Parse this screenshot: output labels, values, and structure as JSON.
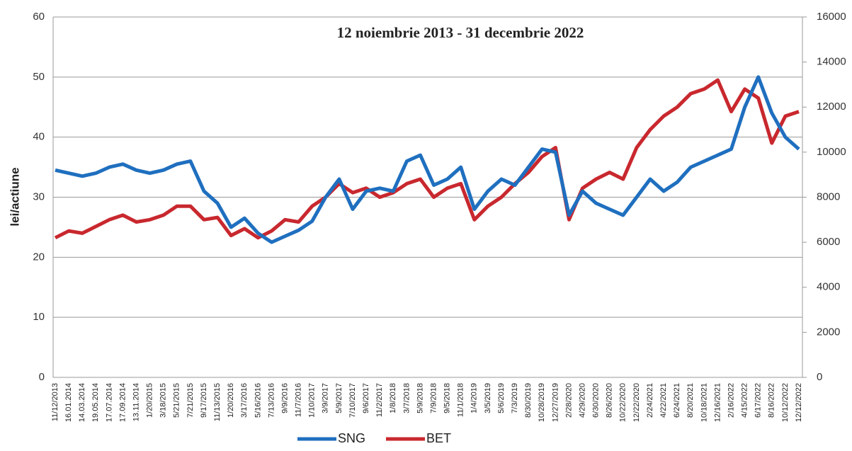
{
  "chart_data": {
    "type": "line",
    "title": "12 noiembrie 2013 - 31 decembrie 2022",
    "ylabel": "lei/actiune",
    "categories": [
      "11/12/2013",
      "16.01.2014",
      "14.03.2014",
      "19.05.2014",
      "17.07.2014",
      "17.09.2014",
      "13.11.2014",
      "1/20/2015",
      "3/18/2015",
      "5/21/2015",
      "7/21/2015",
      "9/17/2015",
      "11/13/2015",
      "1/20/2016",
      "3/17/2016",
      "5/16/2016",
      "7/13/2016",
      "9/9/2016",
      "11/7/2016",
      "1/10/2017",
      "3/9/2017",
      "5/9/2017",
      "7/10/2017",
      "9/6/2017",
      "11/2/2017",
      "1/8/2018",
      "3/7/2018",
      "5/9/2018",
      "7/9/2018",
      "9/5/2018",
      "11/1/2018",
      "1/4/2019",
      "3/5/2019",
      "5/6/2019",
      "7/3/2019",
      "8/30/2019",
      "10/28/2019",
      "12/27/2019",
      "2/28/2020",
      "4/29/2020",
      "6/30/2020",
      "8/26/2020",
      "10/22/2020",
      "12/22/2020",
      "2/24/2021",
      "4/22/2021",
      "6/24/2021",
      "8/20/2021",
      "10/18/2021",
      "12/16/2021",
      "2/16/2022",
      "4/15/2022",
      "6/17/2022",
      "8/16/2022",
      "10/12/2022",
      "12/12/2022"
    ],
    "series": [
      {
        "name": "SNG",
        "color": "#1f6fbf",
        "values": [
          34.5,
          34,
          33.5,
          34,
          35,
          35.5,
          34.5,
          34,
          34.5,
          35.5,
          36,
          31,
          29,
          25,
          26.5,
          24,
          22.5,
          23.5,
          24.5,
          26,
          30,
          33,
          28,
          31,
          31.5,
          31,
          36,
          37,
          32,
          33,
          35,
          28,
          31,
          33,
          32,
          35,
          38,
          37.5,
          27,
          31,
          29,
          28,
          27,
          30,
          33,
          31,
          32.5,
          35,
          36,
          37,
          38,
          45,
          50,
          44,
          40,
          38
        ]
      },
      {
        "name": "BET",
        "color": "#c8282e",
        "axis": "y2",
        "values": [
          6200,
          6500,
          6400,
          6700,
          7000,
          7200,
          6900,
          7000,
          7200,
          7600,
          7600,
          7000,
          7100,
          6300,
          6600,
          6200,
          6500,
          7000,
          6900,
          7600,
          8000,
          8600,
          8200,
          8400,
          8000,
          8200,
          8600,
          8800,
          8000,
          8400,
          8600,
          7000,
          7600,
          8000,
          8600,
          9100,
          9800,
          10200,
          7000,
          8400,
          8800,
          9100,
          8800,
          10200,
          11000,
          11600,
          12000,
          12600,
          12800,
          13200,
          11800,
          12800,
          12400,
          10400,
          11600,
          11800
        ]
      }
    ],
    "ylim": [
      0,
      60
    ],
    "yticks": [
      0,
      10,
      20,
      30,
      40,
      50,
      60
    ],
    "y2lim": [
      0,
      16000
    ],
    "y2ticks": [
      0,
      2000,
      4000,
      6000,
      8000,
      10000,
      12000,
      14000,
      16000
    ],
    "grid": true,
    "legend": "bottom"
  }
}
